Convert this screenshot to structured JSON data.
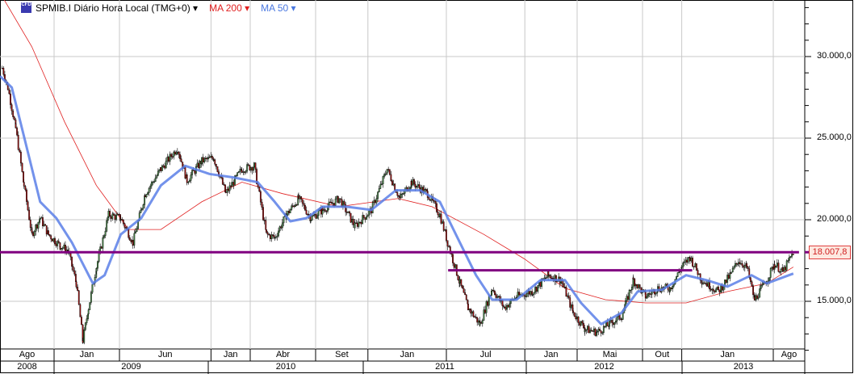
{
  "legend": {
    "symbol": "SPMIB.I Diário Hora Local (TMG+0)",
    "ma200": "MA 200",
    "ma50": "MA 50",
    "badge": "CFD"
  },
  "colors": {
    "ma200": "#e02020",
    "ma50": "#5b7fe8",
    "level_line": "#800080",
    "up": "#4a8a4a",
    "down": "#a01010",
    "grid": "#c8c8c8"
  },
  "last_price_label": "18.007,8",
  "chart_data": {
    "type": "candlestick",
    "ylim": [
      11500,
      33500
    ],
    "y_ticks": [
      15000,
      20000,
      25000,
      30000
    ],
    "y_tick_labels": [
      "15.000,0",
      "20.000,0",
      "25.000,0",
      "30.000,0"
    ],
    "grid": true,
    "x_month_labels": [
      {
        "label": "Ago",
        "date": "2008-08-01"
      },
      {
        "label": "Jan",
        "date": "2009-01-01"
      },
      {
        "label": "Jun",
        "date": "2009-06-01"
      },
      {
        "label": "Jan",
        "date": "2010-01-01"
      },
      {
        "label": "Abr",
        "date": "2010-04-01"
      },
      {
        "label": "Set",
        "date": "2010-09-01"
      },
      {
        "label": "Jan",
        "date": "2011-01-01"
      },
      {
        "label": "Jul",
        "date": "2011-07-01"
      },
      {
        "label": "Jan",
        "date": "2012-01-01"
      },
      {
        "label": "Mai",
        "date": "2012-05-01"
      },
      {
        "label": "Out",
        "date": "2012-10-01"
      },
      {
        "label": "Jan",
        "date": "2013-01-01"
      },
      {
        "label": "Ago",
        "date": "2013-08-01"
      }
    ],
    "x_year_labels": [
      "2008",
      "2009",
      "2010",
      "2011",
      "2012",
      "2013"
    ],
    "price": [
      [
        "2008-09-02",
        29300
      ],
      [
        "2008-09-15",
        28100
      ],
      [
        "2008-10-03",
        25600
      ],
      [
        "2008-10-22",
        22100
      ],
      [
        "2008-11-10",
        19100
      ],
      [
        "2008-11-29",
        20100
      ],
      [
        "2008-12-18",
        19100
      ],
      [
        "2009-01-15",
        18400
      ],
      [
        "2009-02-03",
        18100
      ],
      [
        "2009-02-22",
        16100
      ],
      [
        "2009-03-07",
        12600
      ],
      [
        "2009-03-20",
        14600
      ],
      [
        "2009-04-08",
        17100
      ],
      [
        "2009-05-06",
        20300
      ],
      [
        "2009-06-04",
        20100
      ],
      [
        "2009-07-02",
        18600
      ],
      [
        "2009-07-30",
        21600
      ],
      [
        "2009-09-06",
        23100
      ],
      [
        "2009-10-14",
        24400
      ],
      [
        "2009-11-06",
        22400
      ],
      [
        "2009-12-10",
        23600
      ],
      [
        "2010-01-07",
        23800
      ],
      [
        "2010-02-05",
        21600
      ],
      [
        "2010-03-12",
        23100
      ],
      [
        "2010-04-10",
        23300
      ],
      [
        "2010-05-08",
        19100
      ],
      [
        "2010-05-27",
        18900
      ],
      [
        "2010-06-24",
        20300
      ],
      [
        "2010-07-22",
        21300
      ],
      [
        "2010-08-20",
        20100
      ],
      [
        "2010-09-17",
        20600
      ],
      [
        "2010-10-25",
        21300
      ],
      [
        "2010-12-01",
        19600
      ],
      [
        "2011-01-09",
        20600
      ],
      [
        "2011-02-15",
        23100
      ],
      [
        "2011-03-14",
        21300
      ],
      [
        "2011-04-11",
        22300
      ],
      [
        "2011-05-18",
        21600
      ],
      [
        "2011-06-16",
        20300
      ],
      [
        "2011-07-04",
        18600
      ],
      [
        "2011-08-02",
        16100
      ],
      [
        "2011-08-21",
        14600
      ],
      [
        "2011-09-18",
        13600
      ],
      [
        "2011-10-16",
        15800
      ],
      [
        "2011-11-14",
        14600
      ],
      [
        "2011-12-12",
        15300
      ],
      [
        "2012-01-19",
        15600
      ],
      [
        "2012-02-25",
        16600
      ],
      [
        "2012-03-24",
        16300
      ],
      [
        "2012-04-22",
        14300
      ],
      [
        "2012-05-19",
        13300
      ],
      [
        "2012-06-17",
        13100
      ],
      [
        "2012-07-15",
        13600
      ],
      [
        "2012-08-13",
        14100
      ],
      [
        "2012-09-10",
        16300
      ],
      [
        "2012-10-08",
        15300
      ],
      [
        "2012-11-06",
        15800
      ],
      [
        "2012-12-04",
        15800
      ],
      [
        "2013-01-01",
        17100
      ],
      [
        "2013-01-20",
        17700
      ],
      [
        "2013-02-17",
        16300
      ],
      [
        "2013-03-25",
        15600
      ],
      [
        "2013-04-22",
        16600
      ],
      [
        "2013-05-11",
        17500
      ],
      [
        "2013-05-30",
        17100
      ],
      [
        "2013-06-18",
        15100
      ],
      [
        "2013-07-16",
        16300
      ],
      [
        "2013-08-04",
        17300
      ],
      [
        "2013-08-23",
        16800
      ],
      [
        "2013-09-17",
        18007.8
      ]
    ],
    "series": [
      {
        "name": "MA 200",
        "values": [
          [
            "2008-09-06",
            33500
          ],
          [
            "2008-11-10",
            30600
          ],
          [
            "2009-01-25",
            26000
          ],
          [
            "2009-04-08",
            22100
          ],
          [
            "2009-06-22",
            19400
          ],
          [
            "2009-09-06",
            19400
          ],
          [
            "2009-12-10",
            21100
          ],
          [
            "2010-03-12",
            22300
          ],
          [
            "2010-06-15",
            21600
          ],
          [
            "2010-10-25",
            20800
          ],
          [
            "2011-03-10",
            21300
          ],
          [
            "2011-05-28",
            20800
          ],
          [
            "2011-09-27",
            19100
          ],
          [
            "2011-12-30",
            17600
          ],
          [
            "2012-04-03",
            15800
          ],
          [
            "2012-07-06",
            15100
          ],
          [
            "2012-10-08",
            14900
          ],
          [
            "2013-01-11",
            14900
          ],
          [
            "2013-04-16",
            15600
          ],
          [
            "2013-07-16",
            16100
          ],
          [
            "2013-09-17",
            17100
          ]
        ]
      },
      {
        "name": "MA 50",
        "values": [
          [
            "2008-08-21",
            28800
          ],
          [
            "2008-09-24",
            28100
          ],
          [
            "2008-10-22",
            25100
          ],
          [
            "2008-11-29",
            21100
          ],
          [
            "2009-01-06",
            20100
          ],
          [
            "2009-02-12",
            18600
          ],
          [
            "2009-03-30",
            16100
          ],
          [
            "2009-04-27",
            16600
          ],
          [
            "2009-06-04",
            19100
          ],
          [
            "2009-07-21",
            20100
          ],
          [
            "2009-09-06",
            22100
          ],
          [
            "2009-11-02",
            23300
          ],
          [
            "2009-12-28",
            22800
          ],
          [
            "2010-02-21",
            22600
          ],
          [
            "2010-04-18",
            22300
          ],
          [
            "2010-05-27",
            21100
          ],
          [
            "2010-07-03",
            19900
          ],
          [
            "2010-08-10",
            20100
          ],
          [
            "2010-09-17",
            20800
          ],
          [
            "2010-11-12",
            20800
          ],
          [
            "2011-01-09",
            20600
          ],
          [
            "2011-03-05",
            21800
          ],
          [
            "2011-05-01",
            21800
          ],
          [
            "2011-06-16",
            21100
          ],
          [
            "2011-08-02",
            18600
          ],
          [
            "2011-09-09",
            16600
          ],
          [
            "2011-10-16",
            15100
          ],
          [
            "2011-12-12",
            15100
          ],
          [
            "2012-02-07",
            16300
          ],
          [
            "2012-04-03",
            16300
          ],
          [
            "2012-05-10",
            14900
          ],
          [
            "2012-06-26",
            13600
          ],
          [
            "2012-08-13",
            14300
          ],
          [
            "2012-09-20",
            15600
          ],
          [
            "2012-11-15",
            15700
          ],
          [
            "2013-01-11",
            16600
          ],
          [
            "2013-02-27",
            16300
          ],
          [
            "2013-04-16",
            15900
          ],
          [
            "2013-06-11",
            16600
          ],
          [
            "2013-07-16",
            16100
          ],
          [
            "2013-09-17",
            16700
          ]
        ]
      }
    ],
    "horizontal_lines": [
      {
        "value": 18007.8,
        "from": "2008-08-01",
        "to": "2013-09-30"
      },
      {
        "value": 16900,
        "from": "2011-07-05",
        "to": "2013-01-25"
      }
    ]
  }
}
